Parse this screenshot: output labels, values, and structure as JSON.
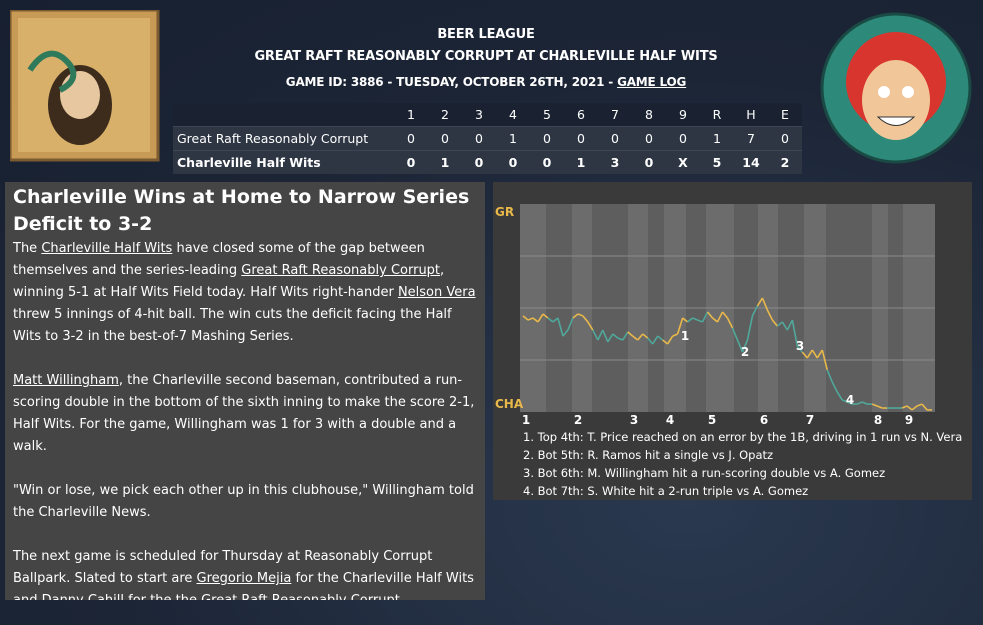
{
  "header": {
    "league": "BEER LEAGUE",
    "matchup": "GREAT RAFT REASONABLY CORRUPT AT CHARLEVILLE HALF WITS",
    "game_info": "GAME ID: 3886 - TUESDAY, OCTOBER 26TH, 2021 - ",
    "game_log_link": "GAME LOG"
  },
  "linescore": {
    "columns": [
      "1",
      "2",
      "3",
      "4",
      "5",
      "6",
      "7",
      "8",
      "9",
      "R",
      "H",
      "E"
    ],
    "rows": [
      {
        "team": "Great Raft Reasonably Corrupt",
        "bold": false,
        "cells": [
          0,
          0,
          0,
          1,
          0,
          0,
          0,
          0,
          0,
          1,
          7,
          0
        ]
      },
      {
        "team": "Charleville Half Wits",
        "bold": true,
        "cells": [
          0,
          1,
          0,
          0,
          0,
          1,
          3,
          0,
          "X",
          5,
          14,
          2
        ]
      }
    ]
  },
  "article": {
    "headline": "Charleville Wins at Home to Narrow Series Deficit to 3-2",
    "paragraphs": [
      [
        "The ",
        {
          "link": "Charleville Half Wits"
        },
        " have closed some of the gap between themselves and the series-leading ",
        {
          "link": "Great Raft Reasonably Corrupt"
        },
        ", winning 5-1 at Half Wits Field today. Half Wits right-hander ",
        {
          "link": "Nelson Vera"
        },
        " threw 5 innings of 4-hit ball. The win cuts the deficit facing the Half Wits to 3-2 in the best-of-7 Mashing Series."
      ],
      [
        {
          "link": "Matt Willingham"
        },
        ", the Charleville second baseman, contributed a run-scoring double in the bottom of the sixth inning to make the score 2-1, Half Wits. For the game, Willingham was 1 for 3 with a double and a walk."
      ],
      [
        "\"Win or lose, we pick each other up in this clubhouse,\" Willingham told the Charleville News."
      ],
      [
        "The next game is scheduled for Thursday at Reasonably Corrupt Ballpark. Slated to start are ",
        {
          "link": "Gregorio Mejia"
        },
        " for the Charleville Half Wits and ",
        {
          "link": "Danny Cahill"
        },
        " for the the Great Raft Reasonably Corrupt."
      ]
    ]
  },
  "win_chart": {
    "yticks": [
      {
        "value": 100,
        "label": "GR"
      },
      {
        "value": 0,
        "label": "CHA"
      }
    ],
    "ylim": [
      0,
      100
    ],
    "grid_lines": [
      25,
      50,
      75
    ],
    "x_labels": [
      "1",
      "2",
      "3",
      "4",
      "5",
      "6",
      "7",
      "8",
      "9"
    ],
    "colors": {
      "top": "#e8b84a",
      "bottom": "#4fa89a"
    },
    "values": [
      46.2,
      44.2,
      45.2,
      43.3,
      47.1,
      45.2,
      43.3,
      45.2,
      36.5,
      39.4,
      45.2,
      47.1,
      46.2,
      43.3,
      39.4,
      34.6,
      39.4,
      33.7,
      37.5,
      35.6,
      34.6,
      38.5,
      36.5,
      34.6,
      37.5,
      35.6,
      32.7,
      36.5,
      34.6,
      32.7,
      36.5,
      37.5,
      45.2,
      43.3,
      45.2,
      44.2,
      43.3,
      48.1,
      45.2,
      43.3,
      48.1,
      45.2,
      40.4,
      34.6,
      28.8,
      34.6,
      46.2,
      51.0,
      54.8,
      49.0,
      44.2,
      41.3,
      43.3,
      39.4,
      44.2,
      31.7,
      28.8,
      26.0,
      29.8,
      26.0,
      29.8,
      20.2,
      14.4,
      9.6,
      5.8,
      4.8,
      3.8,
      3.8,
      4.8,
      3.8,
      3.8,
      2.9,
      1.9,
      1.9,
      1.9,
      1.9,
      1.9,
      2.9,
      1.0,
      2.9,
      3.8,
      1.0,
      1.0
    ],
    "markers": [
      "1",
      "2",
      "3",
      "4"
    ],
    "notes": [
      "1. Top 4th: T. Price reached on an error by the 1B, driving in 1 run vs N. Vera",
      "2. Bot 5th: R. Ramos hit a single vs J. Opatz",
      "3. Bot 6th: M. Willingham hit a run-scoring double vs A. Gomez",
      "4. Bot 7th: S. White hit a 2-run triple vs A. Gomez"
    ]
  }
}
